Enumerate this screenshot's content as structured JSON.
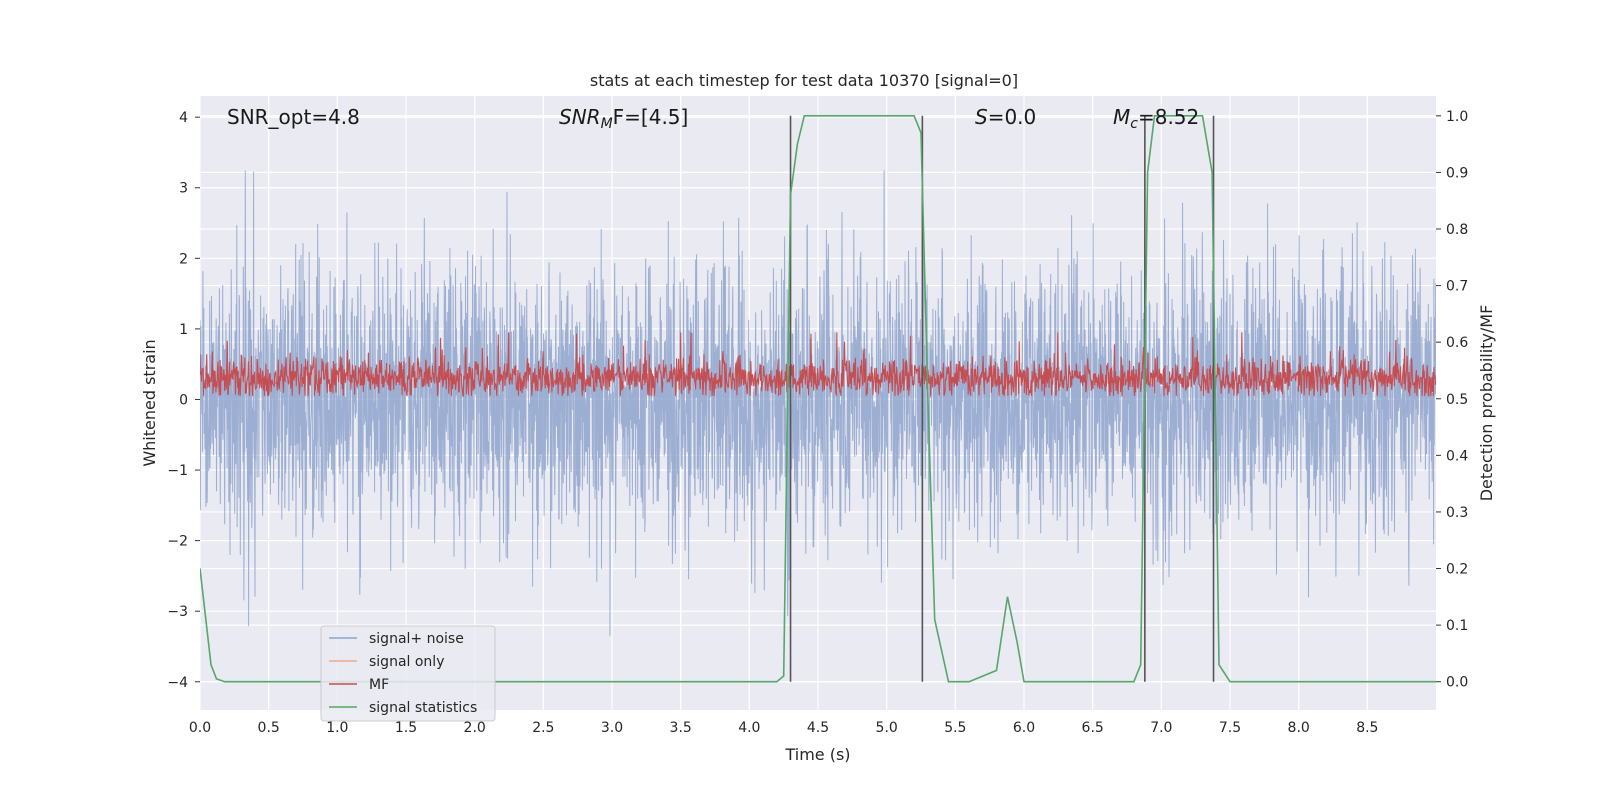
{
  "chart_data": {
    "type": "line",
    "title": "stats at each timestep for test data 10370 [signal=0]",
    "xlabel": "Time (s)",
    "ylabel_left": "Whitened strain",
    "ylabel_right": "Detection probability/MF",
    "xlim": [
      0,
      9.0
    ],
    "ylim_left": [
      -4.4,
      4.3
    ],
    "ylim_right": [
      -0.05,
      1.035
    ],
    "xticks": [
      "0.0",
      "0.5",
      "1.0",
      "1.5",
      "2.0",
      "2.5",
      "3.0",
      "3.5",
      "4.0",
      "4.5",
      "5.0",
      "5.5",
      "6.0",
      "6.5",
      "7.0",
      "7.5",
      "8.0",
      "8.5"
    ],
    "yticks_left": [
      "−4",
      "−3",
      "−2",
      "−1",
      "0",
      "1",
      "2",
      "3",
      "4"
    ],
    "yticks_right": [
      "0.0",
      "0.1",
      "0.2",
      "0.3",
      "0.4",
      "0.5",
      "0.6",
      "0.7",
      "0.8",
      "0.9",
      "1.0"
    ],
    "grid": true,
    "annotations": {
      "snr_opt": "SNR_opt=4.8",
      "snr_mf_base": "SNR",
      "snr_mf_sub": "M",
      "snr_mf_rest": "F=[4.5]",
      "s_italic": "S",
      "s_rest": "=0.0",
      "mc_italic": "M",
      "mc_sub": "c",
      "mc_rest": "=8.52"
    },
    "legend": {
      "position": "lower-left",
      "entries": [
        "signal+ noise",
        "signal only",
        "MF",
        "signal statistics"
      ]
    },
    "series": {
      "noise": {
        "name": "signal+ noise",
        "color": "#8ea3cc",
        "std": 0.95,
        "amplitude_range": [
          -4.0,
          3.35
        ]
      },
      "signal_only": {
        "name": "signal only",
        "color": "#eea98d"
      },
      "mf": {
        "name": "MF",
        "color": "#c44e52",
        "range": [
          0.05,
          0.95
        ]
      },
      "signal_statistics": {
        "name": "signal statistics",
        "color": "#55a868",
        "x": [
          0.0,
          0.08,
          0.12,
          0.18,
          0.25,
          4.0,
          4.2,
          4.25,
          4.3,
          4.35,
          4.4,
          5.0,
          5.2,
          5.25,
          5.3,
          5.35,
          5.45,
          5.6,
          5.8,
          5.88,
          5.95,
          6.0,
          6.1,
          6.8,
          6.85,
          6.9,
          6.95,
          7.1,
          7.3,
          7.37,
          7.42,
          7.5,
          9.0
        ],
        "y": [
          0.2,
          0.03,
          0.005,
          0.0,
          0.0,
          0.0,
          0.0,
          0.01,
          0.86,
          0.95,
          1.0,
          1.0,
          1.0,
          0.97,
          0.5,
          0.11,
          0.0,
          0.0,
          0.02,
          0.15,
          0.07,
          0.0,
          0.0,
          0.0,
          0.03,
          0.9,
          1.0,
          1.0,
          1.0,
          0.9,
          0.03,
          0.0,
          0.0
        ]
      }
    },
    "vertical_lines": {
      "color": "#555555",
      "x": [
        4.3,
        5.26,
        6.88,
        7.38
      ],
      "y_top": 1.0,
      "y_bottom": 0.0
    }
  }
}
